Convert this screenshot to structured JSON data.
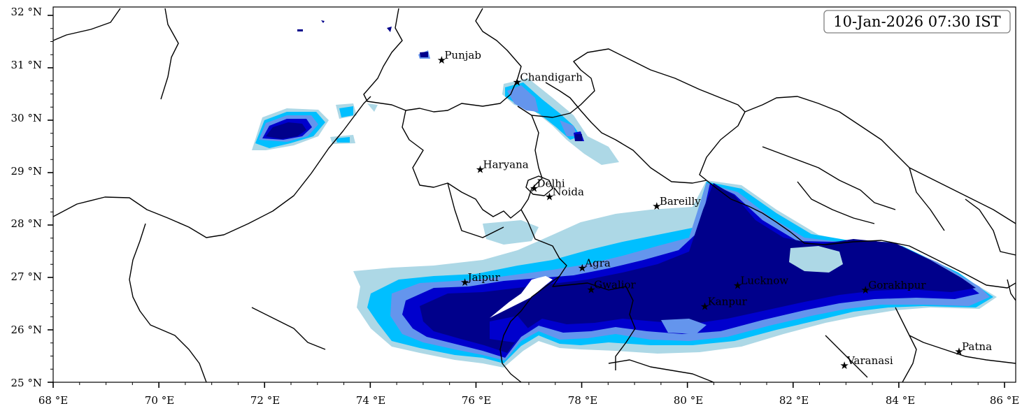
{
  "timestamp": "10-Jan-2026 07:30 IST",
  "axes": {
    "x_ticks": [
      "68 °E",
      "70 °E",
      "72 °E",
      "74 °E",
      "76 °E",
      "78 °E",
      "80 °E",
      "82 °E",
      "84 °E",
      "86 °E"
    ],
    "y_ticks": [
      "32 °N",
      "31 °N",
      "30 °N",
      "29 °N",
      "28 °N",
      "27 °N",
      "26 °N",
      "25 °N"
    ],
    "lon_range": [
      68,
      86.2
    ],
    "lat_range": [
      25,
      32.1
    ]
  },
  "colors": {
    "level1": "#add8e6",
    "level2": "#00bfff",
    "level3": "#6495ed",
    "level4": "#0000cd",
    "level5": "#00008b",
    "border": "#000000",
    "box_edge": "#808080"
  },
  "places": [
    {
      "name": "Punjab",
      "lon": 75.35,
      "lat": 31.15
    },
    {
      "name": "Chandigarh",
      "lon": 76.78,
      "lat": 30.73
    },
    {
      "name": "Haryana",
      "lon": 76.08,
      "lat": 29.06
    },
    {
      "name": "Delhi",
      "lon": 77.1,
      "lat": 28.7
    },
    {
      "name": "Noida",
      "lon": 77.39,
      "lat": 28.54
    },
    {
      "name": "Bareilly",
      "lon": 79.42,
      "lat": 28.36
    },
    {
      "name": "Agra",
      "lon": 78.01,
      "lat": 27.18
    },
    {
      "name": "Jaipur",
      "lon": 75.79,
      "lat": 26.91
    },
    {
      "name": "Lucknow",
      "lon": 80.95,
      "lat": 26.85
    },
    {
      "name": "Gwalior",
      "lon": 78.18,
      "lat": 26.77
    },
    {
      "name": "Gorakhpur",
      "lon": 83.37,
      "lat": 26.76
    },
    {
      "name": "Kanpur",
      "lon": 80.33,
      "lat": 26.45
    },
    {
      "name": "Patna",
      "lon": 85.14,
      "lat": 25.59
    },
    {
      "name": "Varanasi",
      "lon": 82.97,
      "lat": 25.32
    }
  ]
}
